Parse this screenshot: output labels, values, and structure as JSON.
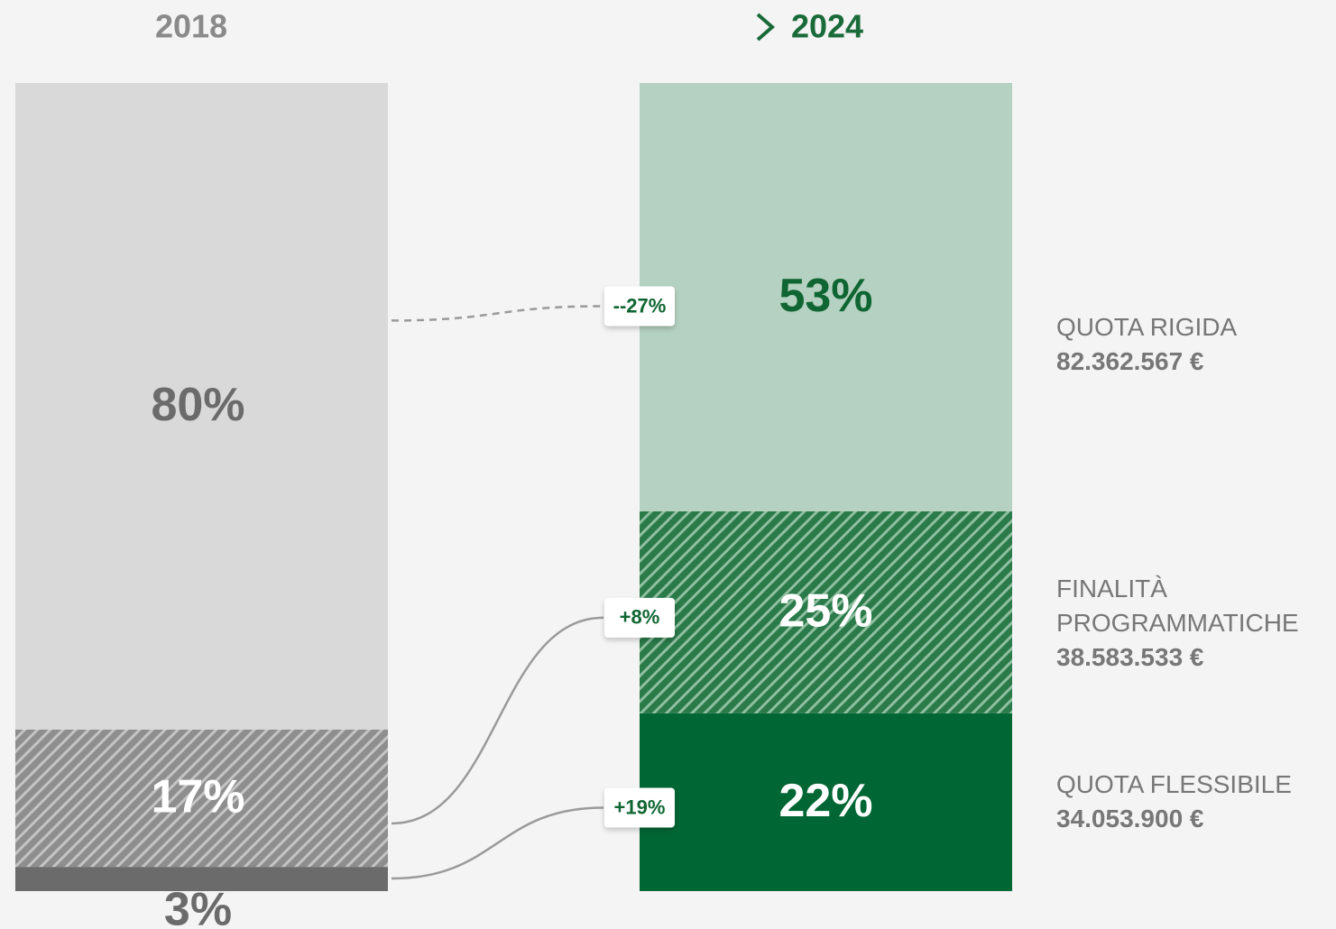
{
  "chart_data": {
    "type": "stacked_bar",
    "categories": [
      "2018",
      "2024"
    ],
    "category_colors": [
      "#8a8a8a",
      "#1a6b3a"
    ],
    "series": [
      {
        "name": "QUOTA RIGIDA",
        "amount": "82.362.567 €",
        "change": "--27%",
        "dashed": true,
        "colors": [
          "#d9d9d9",
          "#b5d1c1"
        ],
        "label_colors": [
          "#6b6b6b",
          "#0f6632"
        ],
        "values": [
          80,
          53
        ],
        "value_labels": [
          "80%",
          "53%"
        ]
      },
      {
        "name": "FINALITÀ PROGRAMMATICHE",
        "amount": "38.583.533 €",
        "change": "+8%",
        "hatched": true,
        "colors": [
          "#8e8e8e",
          "#2a7a4a"
        ],
        "stripe_colors": [
          "#c4c4c4",
          "#8fbf9f"
        ],
        "label_colors": [
          "#ffffff",
          "#ffffff"
        ],
        "values": [
          17,
          25
        ],
        "value_labels": [
          "17%",
          "25%"
        ]
      },
      {
        "name": "QUOTA FLESSIBILE",
        "amount": "34.053.900 €",
        "change": "+19%",
        "colors": [
          "#6b6b6b",
          "#006633"
        ],
        "label_colors": [
          "#6b6b6b",
          "#ffffff"
        ],
        "values": [
          3,
          22
        ],
        "value_labels": [
          "3%",
          "22%"
        ]
      }
    ]
  }
}
